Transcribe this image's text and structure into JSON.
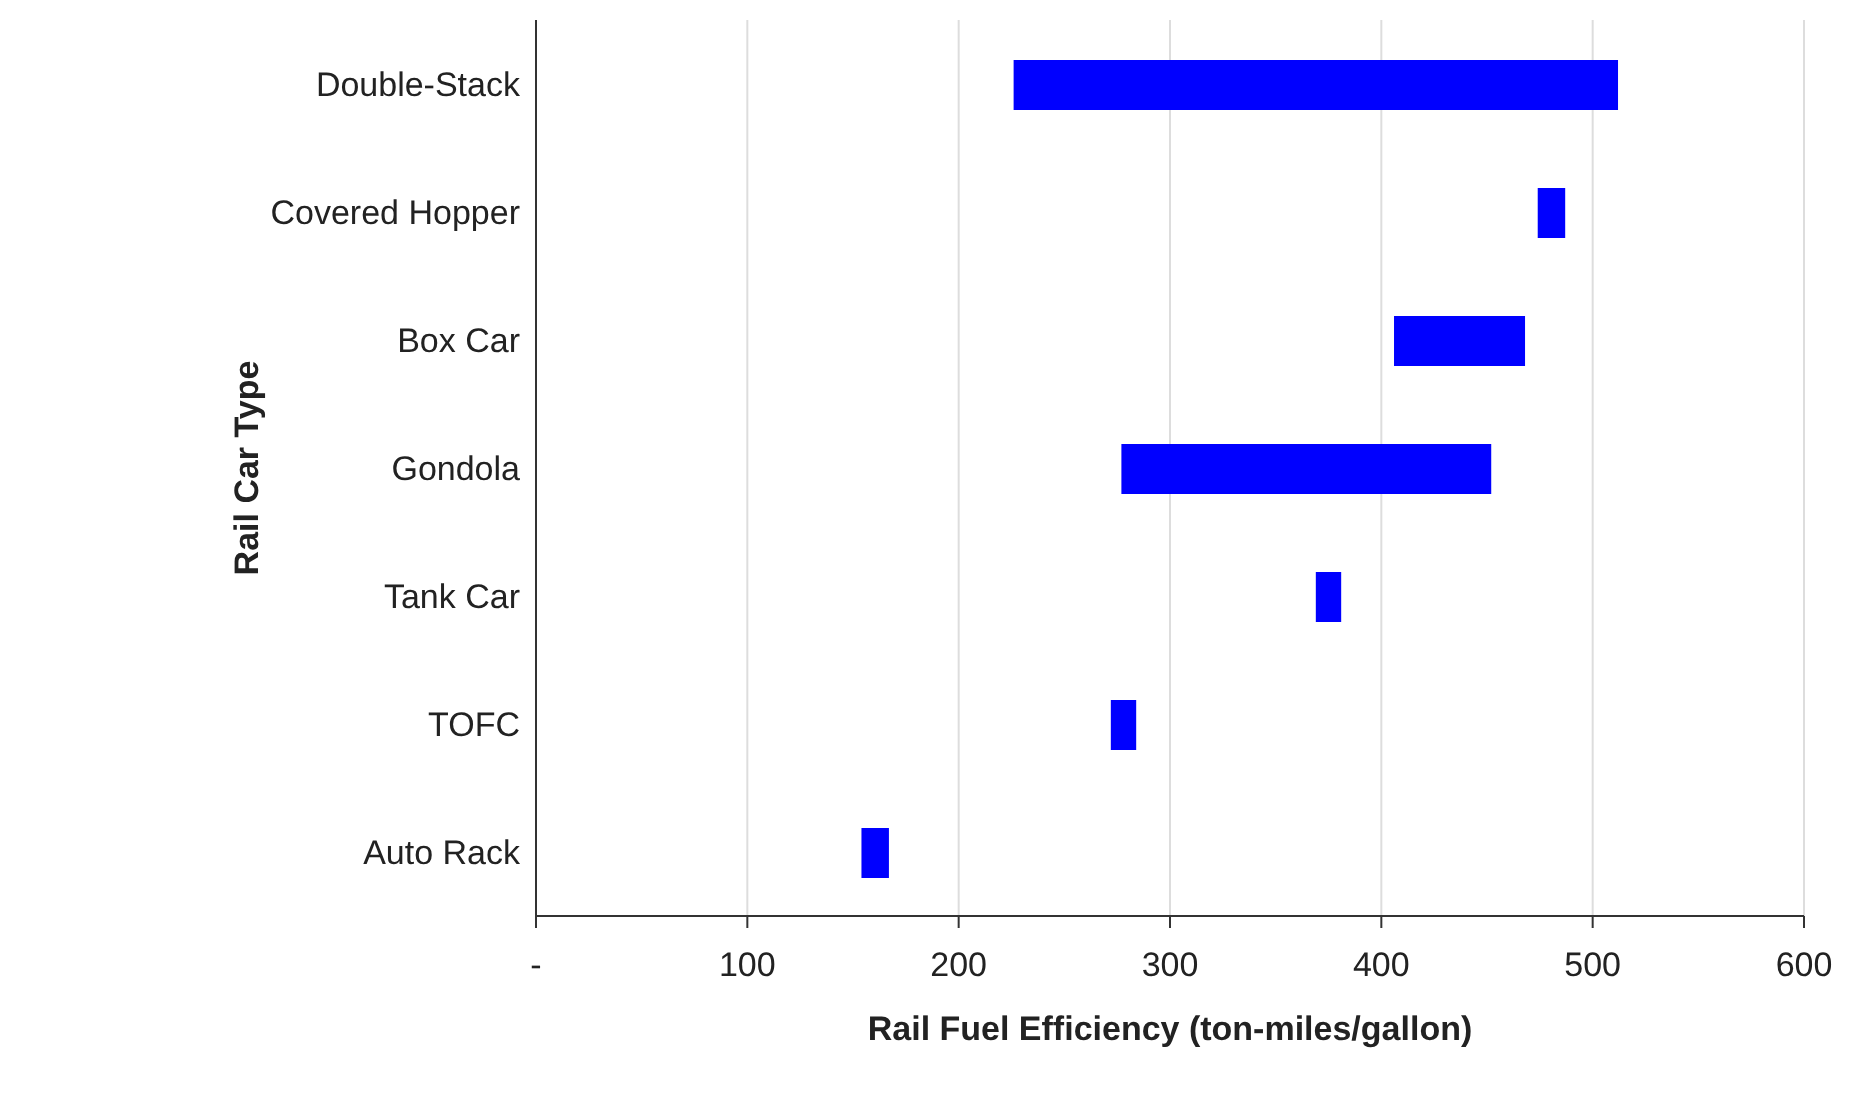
{
  "chart_data": {
    "type": "bar",
    "orientation": "horizontal",
    "xlabel": "Rail Fuel Efficiency (ton-miles/gallon)",
    "ylabel": "Rail Car Type",
    "categories": [
      "Double-Stack",
      "Covered Hopper",
      "Box Car",
      "Gondola",
      "Tank Car",
      "TOFC",
      "Auto Rack"
    ],
    "base": [
      226,
      474,
      406,
      277,
      369,
      272,
      154
    ],
    "values": [
      286,
      13,
      62,
      175,
      12,
      12,
      13
    ],
    "color": "#0000ff",
    "xlim": [
      0,
      600
    ],
    "xticks": [
      {
        "value": 0,
        "label": "-"
      },
      100,
      200,
      300,
      400,
      500,
      600
    ],
    "grid": "x",
    "legend": false
  }
}
